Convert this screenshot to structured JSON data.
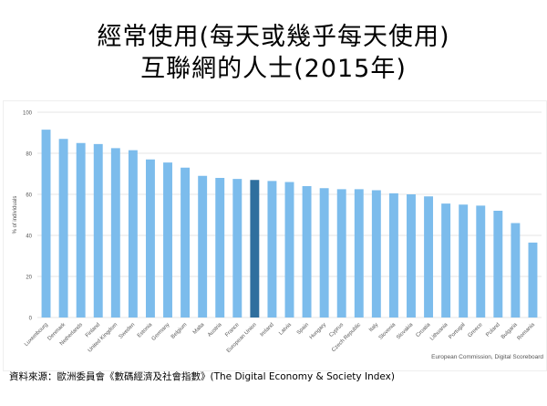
{
  "header": {
    "title_line1": "經常使用(每天或幾乎每天使用)",
    "title_line2": "互聯網的人士(2015年)"
  },
  "footer": {
    "source": "資料來源：歐洲委員會《數碼經濟及社會指數》(The Digital Economy & Society Index)",
    "credit": "European Commission, Digital Scoreboard"
  },
  "colors": {
    "bar": "#7cbcec",
    "highlight": "#2f6f9e",
    "grid": "#e4e4e4",
    "axis_text": "#555555"
  },
  "chart_data": {
    "type": "bar",
    "ylabel": "% of individuals",
    "ylim": [
      0,
      100
    ],
    "yticks": [
      0,
      20,
      40,
      60,
      80,
      100
    ],
    "grid": true,
    "highlight_category": "European Union",
    "categories": [
      "Luxembourg",
      "Denmark",
      "Netherlands",
      "Finland",
      "United Kingdom",
      "Sweden",
      "Estonia",
      "Germany",
      "Belgium",
      "Malta",
      "Austria",
      "France",
      "European Union",
      "Ireland",
      "Latvia",
      "Spain",
      "Hungary",
      "Cyprus",
      "Czech Republic",
      "Italy",
      "Slovenia",
      "Slovakia",
      "Croatia",
      "Lithuania",
      "Portugal",
      "Greece",
      "Poland",
      "Bulgaria",
      "Romania"
    ],
    "values": [
      91.5,
      87,
      85,
      84.5,
      82.5,
      81.5,
      77,
      75.5,
      73,
      69,
      68,
      67.5,
      67,
      66.5,
      66,
      64,
      63,
      62.5,
      62.5,
      62,
      60.5,
      60,
      59,
      55.5,
      55,
      54.5,
      52,
      46,
      36.5
    ]
  }
}
